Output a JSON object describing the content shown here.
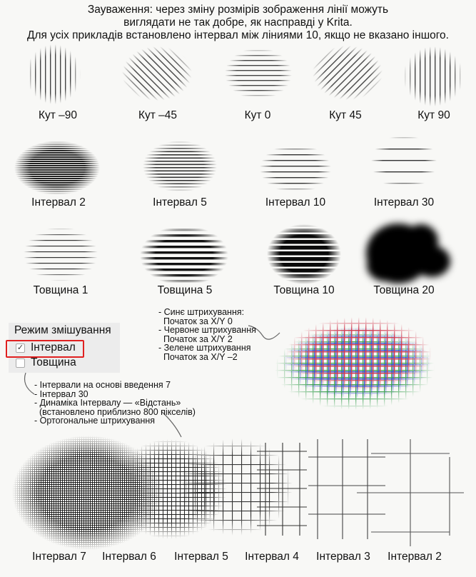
{
  "note": {
    "line1": "Зауваження: через зміну розмірів зображення лінії можуть",
    "line2": "виглядати не так добре, як насправді у Krita.",
    "line3": "Для усіх прикладів встановлено інтервал між ліниями 10, якщо не вказано іншого."
  },
  "angle_row": [
    "Кут –90",
    "Кут –45",
    "Кут 0",
    "Кут 45",
    "Кут 90"
  ],
  "spacing_row": [
    "Інтервал 2",
    "Інтервал 5",
    "Інтервал 10",
    "Інтервал 30"
  ],
  "thickness_row": [
    "Товщина 1",
    "Товщина 5",
    "Товщина 10",
    "Товщина 20"
  ],
  "color_annotation": [
    "- Синє штрихування:",
    "  Початок за X/Y 0",
    "- Червоне штрихування",
    "  Початок за X/Y 2",
    "- Зелене штрихування",
    "  Початок за X/Y –2"
  ],
  "blend_panel": {
    "title": "Режим змішування",
    "option1": "Інтервал",
    "option1_checked": "✓",
    "option2": "Товщина"
  },
  "bottom_annotation": [
    "- Інтервали на основі введення 7",
    "- Інтервал 30",
    "- Динаміка Інтервалу — «Відстань»",
    "  (встановлено приблизно 800 пікселів)",
    "- Ортогональне штрихування"
  ],
  "bottom_row": [
    "Інтервал 7",
    "Інтервал 6",
    "Інтервал 5",
    "Інтервал 4",
    "Інтервал 3",
    "Інтервал 2"
  ],
  "colors": {
    "ink": "#222222",
    "highlight": "#e02020",
    "blue": "#3a4fd0",
    "red": "#d03a4f",
    "green": "#3aa050"
  }
}
